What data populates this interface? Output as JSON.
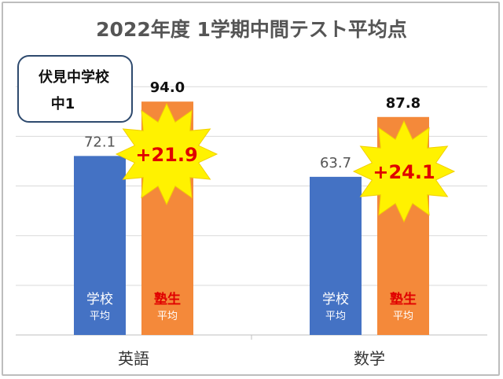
{
  "chart_data": {
    "type": "bar",
    "title": "2022年度 1学期中間テスト平均点",
    "categories": [
      "英語",
      "数学"
    ],
    "series": [
      {
        "name": "学校平均",
        "values": [
          72.1,
          63.7
        ],
        "color": "#4472c4",
        "label_top": "学校",
        "label_bottom": "平均",
        "label_color": "#ffffff"
      },
      {
        "name": "塾生平均",
        "values": [
          94.0,
          87.8
        ],
        "color": "#f4893a",
        "label_top": "塾生",
        "label_bottom": "平均",
        "label_color": "#e00000"
      }
    ],
    "value_labels": [
      "72.1",
      "94.0",
      "63.7",
      "87.8"
    ],
    "differences": [
      "+21.9",
      "+24.1"
    ],
    "ylim": [
      0,
      108
    ],
    "gridlines": [
      0,
      20,
      40,
      60,
      80,
      100
    ],
    "grid": true,
    "legend": "none"
  },
  "info_box": {
    "line1": "伏見中学校",
    "line2": "中1"
  },
  "colors": {
    "star": "#fff200",
    "diff_text": "#e00000",
    "grid": "#d9d9d9"
  }
}
